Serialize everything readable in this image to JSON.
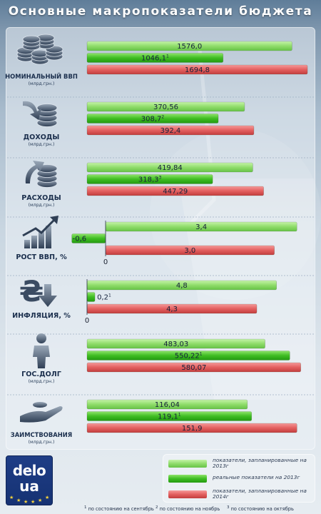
{
  "title": "Основные макропоказатели бюджета",
  "colors": {
    "planned2013": "#8fdc6a",
    "actual2013": "#3fbd22",
    "planned2014": "#e35f5f"
  },
  "chart_data": {
    "type": "bar",
    "orientation": "horizontal",
    "series_keys": [
      "planned2013",
      "actual2013",
      "planned2014"
    ],
    "categories": [
      {
        "label": "НОМИНАЛЬНЫЙ ВВП",
        "unit": "(млрд.грн.)",
        "icon": "coins-icon",
        "xmax": 1700,
        "values": [
          1576.0,
          1046.1,
          1694.8
        ],
        "labels": [
          "1576,0",
          "1046,1",
          "1694,8"
        ],
        "marks": [
          "",
          "1",
          ""
        ],
        "show_zero": false
      },
      {
        "label": "ДОХОДЫ",
        "unit": "(млрд.грн.)",
        "icon": "income-arrow-icon",
        "xmax": 520,
        "values": [
          370.56,
          308.7,
          392.4
        ],
        "labels": [
          "370,56",
          "308,7",
          "392,4"
        ],
        "marks": [
          "",
          "2",
          ""
        ],
        "show_zero": false
      },
      {
        "label": "РАСХОДЫ",
        "unit": "(млрд.грн.)",
        "icon": "expense-arrow-icon",
        "xmax": 560,
        "values": [
          419.84,
          318.3,
          447.29
        ],
        "labels": [
          "419,84",
          "318,3",
          "447,29"
        ],
        "marks": [
          "",
          "3",
          ""
        ],
        "show_zero": false
      },
      {
        "label": "РОСТ ВВП, %",
        "unit": "",
        "icon": "growth-chart-icon",
        "xmax": 3.6,
        "values": [
          3.4,
          -0.6,
          3.0
        ],
        "labels": [
          "3,4",
          "-0,6",
          "3,0"
        ],
        "marks": [
          "",
          "",
          ""
        ],
        "show_zero": true
      },
      {
        "label": "ИНФЛЯЦИЯ, %",
        "unit": "",
        "icon": "hryvnia-down-icon",
        "xmax": 5.6,
        "values": [
          4.8,
          0.2,
          4.3
        ],
        "labels": [
          "4,8",
          "0,2",
          "4,3"
        ],
        "marks": [
          "",
          "1",
          ""
        ],
        "show_zero": true
      },
      {
        "label": "ГОС.ДОЛГ",
        "unit": "(млрд.грн.)",
        "icon": "person-icon",
        "xmax": 600,
        "values": [
          483.03,
          550.22,
          580.07
        ],
        "labels": [
          "483,03",
          "550,22",
          "580,07"
        ],
        "marks": [
          "",
          "1",
          ""
        ],
        "show_zero": false
      },
      {
        "label": "ЗАИМСТВОВАНИЯ",
        "unit": "(млрд.грн.)",
        "icon": "hand-coin-icon",
        "xmax": 160,
        "values": [
          116.04,
          119.1,
          151.9
        ],
        "labels": [
          "116,04",
          "119,1",
          "151,9"
        ],
        "marks": [
          "",
          "1",
          ""
        ],
        "show_zero": false
      }
    ]
  },
  "legend": [
    {
      "key": "planned2013",
      "text": "показатели, запланированные на 2013г"
    },
    {
      "key": "actual2013",
      "text": "реальные показатели на 2013г"
    },
    {
      "key": "planned2014",
      "text": "показатели, запланированные на 2014г"
    }
  ],
  "logo": {
    "line1": "delo",
    "line2": "ua"
  },
  "footnotes": [
    {
      "mark": "1",
      "text": "по состоянию на сентябрь"
    },
    {
      "mark": "2",
      "text": "по состоянию на ноябрь"
    },
    {
      "mark": "3",
      "text": "по состоянию на октябрь"
    }
  ]
}
